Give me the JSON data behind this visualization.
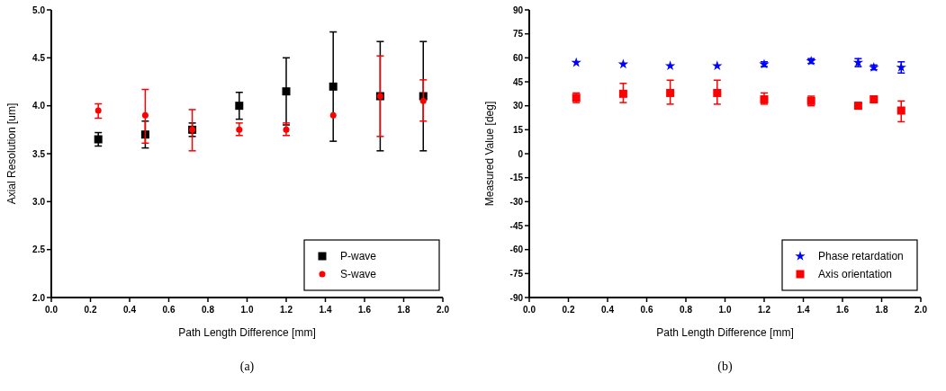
{
  "chart_data": [
    {
      "type": "scatter",
      "xlabel": "Path Length Difference [mm]",
      "ylabel": "Axial Resolution [um]",
      "annotations": [
        "(a)"
      ],
      "xlim": [
        0,
        2
      ],
      "xticks": [
        {
          "value": 0,
          "label": "0.0"
        },
        {
          "value": 0.2,
          "label": "0.2"
        },
        {
          "value": 0.4,
          "label": "0.4"
        },
        {
          "value": 0.6,
          "label": "0.6"
        },
        {
          "value": 0.8,
          "label": "0.8"
        },
        {
          "value": 1,
          "label": "1.0"
        },
        {
          "value": 1.2,
          "label": "1.2"
        },
        {
          "value": 1.4,
          "label": "1.4"
        },
        {
          "value": 1.6,
          "label": "1.6"
        },
        {
          "value": 1.8,
          "label": "1.8"
        },
        {
          "value": 2,
          "label": "2.0"
        }
      ],
      "ylim": [
        2,
        5
      ],
      "yticks": [
        {
          "value": 2,
          "label": "2.0"
        },
        {
          "value": 2.5,
          "label": "2.5"
        },
        {
          "value": 3,
          "label": "3.0"
        },
        {
          "value": 3.5,
          "label": "3.5"
        },
        {
          "value": 4,
          "label": "4.0"
        },
        {
          "value": 4.5,
          "label": "4.5"
        },
        {
          "value": 5,
          "label": "5.0"
        }
      ],
      "grid": false,
      "legend": "bottom right",
      "x": [
        0.24,
        0.48,
        0.72,
        0.96,
        1.2,
        1.44,
        1.68,
        1.9
      ],
      "series": [
        {
          "name": "P-wave",
          "color": "#000000",
          "marker": "square",
          "values": [
            3.65,
            3.7,
            3.75,
            4.0,
            4.15,
            4.2,
            4.1,
            4.1
          ],
          "errors": [
            [
              3.58,
              3.72
            ],
            [
              3.56,
              3.84
            ],
            [
              3.68,
              3.82
            ],
            [
              3.86,
              4.14
            ],
            [
              3.8,
              4.5
            ],
            [
              3.63,
              4.77
            ],
            [
              3.53,
              4.67
            ],
            [
              3.53,
              4.67
            ]
          ]
        },
        {
          "name": "S-wave",
          "color": "#ff0000",
          "marker": "circle",
          "values": [
            3.95,
            3.9,
            3.75,
            3.75,
            3.75,
            3.9,
            4.1,
            4.05
          ],
          "errors": [
            [
              3.87,
              4.02
            ],
            [
              3.61,
              4.17
            ],
            [
              3.53,
              3.96
            ],
            [
              3.69,
              3.82
            ],
            [
              3.69,
              3.82
            ],
            null,
            [
              3.68,
              4.52
            ],
            [
              3.84,
              4.27
            ]
          ]
        }
      ]
    },
    {
      "type": "scatter",
      "xlabel": "Path Length Difference [mm]",
      "ylabel": "Measured Value [deg]",
      "annotations": [
        "(b)"
      ],
      "xlim": [
        0,
        2
      ],
      "xticks": [
        {
          "value": 0,
          "label": "0.0"
        },
        {
          "value": 0.2,
          "label": "0.2"
        },
        {
          "value": 0.4,
          "label": "0.4"
        },
        {
          "value": 0.6,
          "label": "0.6"
        },
        {
          "value": 0.8,
          "label": "0.8"
        },
        {
          "value": 1,
          "label": "1.0"
        },
        {
          "value": 1.2,
          "label": "1.2"
        },
        {
          "value": 1.4,
          "label": "1.4"
        },
        {
          "value": 1.6,
          "label": "1.6"
        },
        {
          "value": 1.8,
          "label": "1.8"
        },
        {
          "value": 2,
          "label": "2.0"
        }
      ],
      "ylim": [
        -90,
        90
      ],
      "yticks": [
        -90,
        -75,
        -60,
        -45,
        -30,
        -15,
        0,
        15,
        30,
        45,
        60,
        75,
        90
      ],
      "grid": false,
      "legend": "bottom right",
      "x": [
        0.24,
        0.48,
        0.72,
        0.96,
        1.2,
        1.44,
        1.68,
        1.76,
        1.9
      ],
      "series": [
        {
          "name": "Phase retardation",
          "color": "#0000ff",
          "marker": "star",
          "values": [
            57,
            56,
            55,
            55,
            56,
            58,
            57,
            54,
            54
          ],
          "errors": [
            null,
            null,
            null,
            null,
            1.5,
            1.5,
            2.5,
            1.5,
            3.5
          ]
        },
        {
          "name": "Axis orientation",
          "color": "#ff0000",
          "marker": "square",
          "values": [
            35,
            37.5,
            38,
            38,
            34,
            33,
            30,
            34,
            27
          ],
          "errors": [
            [
              32,
              38
            ],
            [
              32,
              44
            ],
            [
              31,
              46
            ],
            [
              31,
              46
            ],
            [
              31,
              38
            ],
            [
              30,
              36
            ],
            [
              28,
              32
            ],
            [
              32,
              36
            ],
            [
              20,
              33
            ]
          ]
        }
      ]
    }
  ]
}
